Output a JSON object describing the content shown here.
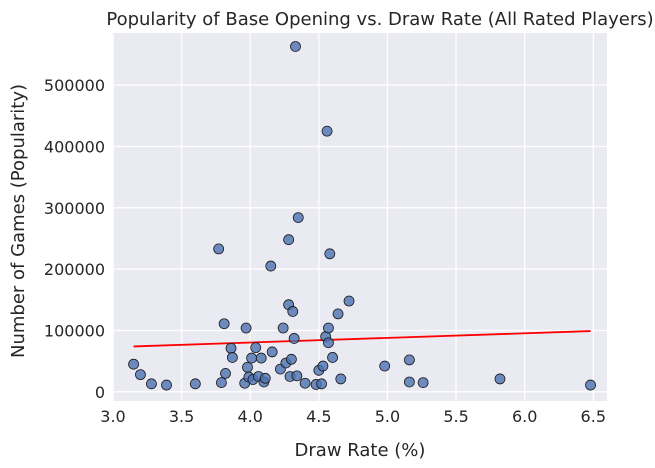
{
  "chart_data": {
    "type": "scatter",
    "title": "Popularity of Base Opening vs. Draw Rate (All Rated Players)",
    "xlabel": "Draw Rate (%)",
    "ylabel": "Number of Games (Popularity)",
    "xlim": [
      3.0,
      6.6
    ],
    "ylim": [
      -15000,
      585000
    ],
    "xticks": [
      3.0,
      3.5,
      4.0,
      4.5,
      5.0,
      5.5,
      6.0,
      6.5
    ],
    "xtick_labels": [
      "3.0",
      "3.5",
      "4.0",
      "4.5",
      "5.0",
      "5.5",
      "6.0",
      "6.5"
    ],
    "yticks": [
      0,
      100000,
      200000,
      300000,
      400000,
      500000
    ],
    "ytick_labels": [
      "0",
      "100000",
      "200000",
      "300000",
      "400000",
      "500000"
    ],
    "grid": true,
    "background_color": "#eaeaf2",
    "point_color": "#4c72b0",
    "point_edge_color": "#1a1a1a",
    "trend_color": "#ff0000",
    "points": [
      {
        "x": 3.15,
        "y": 45000
      },
      {
        "x": 3.2,
        "y": 28000
      },
      {
        "x": 3.28,
        "y": 13000
      },
      {
        "x": 3.39,
        "y": 11000
      },
      {
        "x": 3.6,
        "y": 13000
      },
      {
        "x": 3.77,
        "y": 233000
      },
      {
        "x": 3.79,
        "y": 15000
      },
      {
        "x": 3.81,
        "y": 111000
      },
      {
        "x": 3.82,
        "y": 30000
      },
      {
        "x": 3.86,
        "y": 71000
      },
      {
        "x": 3.87,
        "y": 56000
      },
      {
        "x": 3.96,
        "y": 14000
      },
      {
        "x": 3.97,
        "y": 104000
      },
      {
        "x": 3.98,
        "y": 40000
      },
      {
        "x": 3.99,
        "y": 24000
      },
      {
        "x": 4.01,
        "y": 55000
      },
      {
        "x": 4.02,
        "y": 20000
      },
      {
        "x": 4.04,
        "y": 72000
      },
      {
        "x": 4.06,
        "y": 25000
      },
      {
        "x": 4.08,
        "y": 55000
      },
      {
        "x": 4.1,
        "y": 16000
      },
      {
        "x": 4.11,
        "y": 22000
      },
      {
        "x": 4.15,
        "y": 205000
      },
      {
        "x": 4.16,
        "y": 65000
      },
      {
        "x": 4.22,
        "y": 37000
      },
      {
        "x": 4.24,
        "y": 104000
      },
      {
        "x": 4.26,
        "y": 47000
      },
      {
        "x": 4.28,
        "y": 248000
      },
      {
        "x": 4.28,
        "y": 142000
      },
      {
        "x": 4.29,
        "y": 25000
      },
      {
        "x": 4.3,
        "y": 53000
      },
      {
        "x": 4.31,
        "y": 131000
      },
      {
        "x": 4.32,
        "y": 87000
      },
      {
        "x": 4.33,
        "y": 563000
      },
      {
        "x": 4.34,
        "y": 26000
      },
      {
        "x": 4.35,
        "y": 284000
      },
      {
        "x": 4.4,
        "y": 14000
      },
      {
        "x": 4.48,
        "y": 12000
      },
      {
        "x": 4.5,
        "y": 35000
      },
      {
        "x": 4.52,
        "y": 13000
      },
      {
        "x": 4.53,
        "y": 42000
      },
      {
        "x": 4.55,
        "y": 90000
      },
      {
        "x": 4.56,
        "y": 425000
      },
      {
        "x": 4.57,
        "y": 80000
      },
      {
        "x": 4.57,
        "y": 104000
      },
      {
        "x": 4.58,
        "y": 225000
      },
      {
        "x": 4.6,
        "y": 56000
      },
      {
        "x": 4.64,
        "y": 127000
      },
      {
        "x": 4.66,
        "y": 21000
      },
      {
        "x": 4.72,
        "y": 148000
      },
      {
        "x": 4.98,
        "y": 42000
      },
      {
        "x": 5.16,
        "y": 52000
      },
      {
        "x": 5.16,
        "y": 16000
      },
      {
        "x": 5.26,
        "y": 15000
      },
      {
        "x": 5.82,
        "y": 21000
      },
      {
        "x": 6.48,
        "y": 11000
      }
    ],
    "trend_line": {
      "x": [
        3.15,
        6.48
      ],
      "y": [
        74000,
        99000
      ]
    }
  }
}
